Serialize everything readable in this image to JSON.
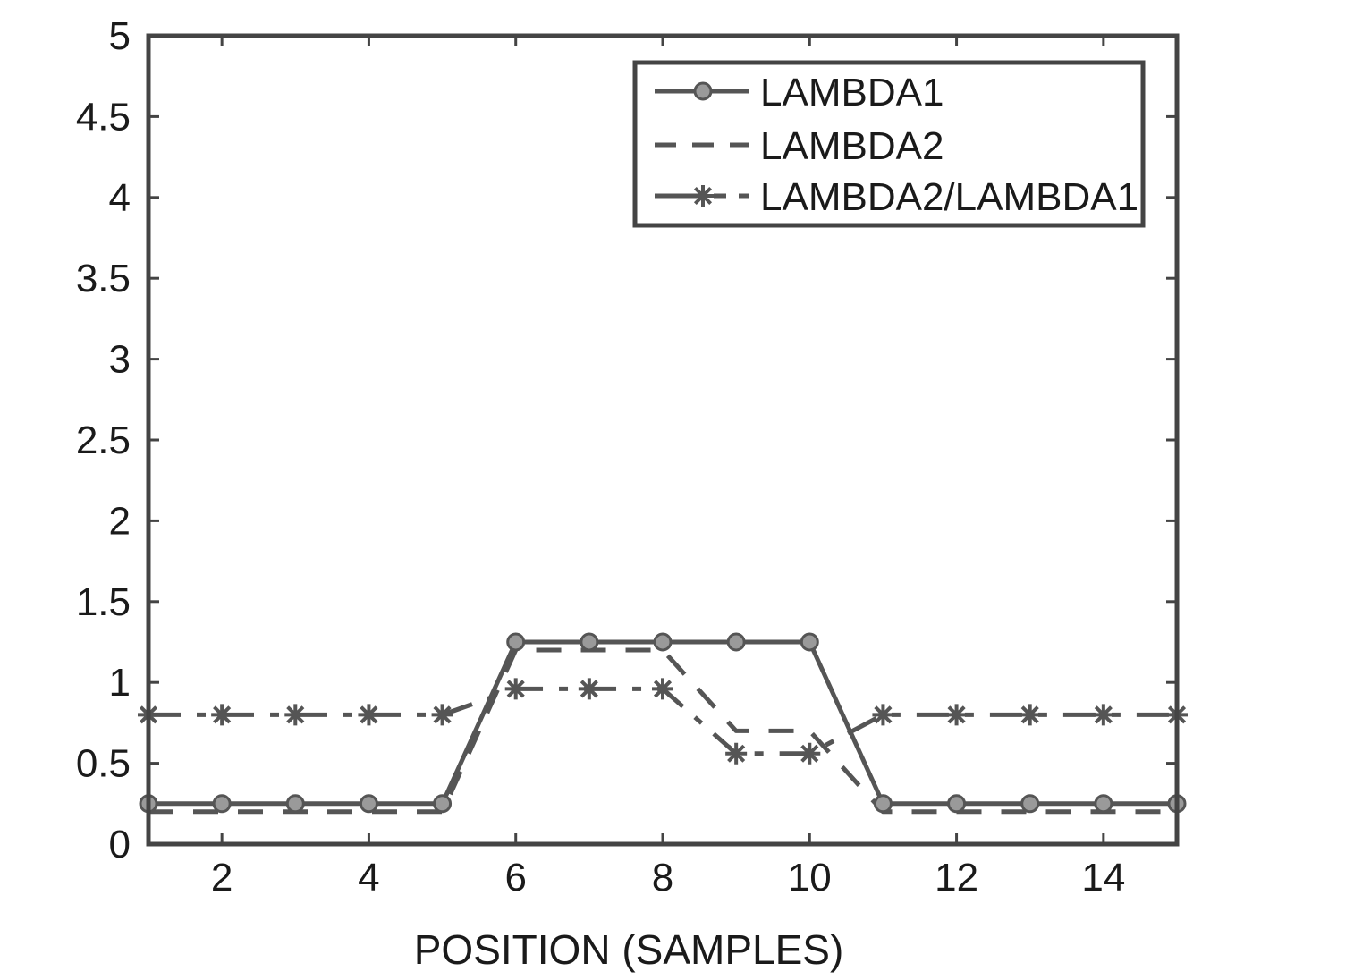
{
  "chart_data": {
    "type": "line",
    "title": "",
    "xlabel": "POSITION (SAMPLES)",
    "ylabel": "",
    "xlim": [
      1,
      15
    ],
    "ylim": [
      0,
      5
    ],
    "xticks": [
      2,
      4,
      6,
      8,
      10,
      12,
      14
    ],
    "xtick_labels": [
      "2",
      "4",
      "6",
      "8",
      "10",
      "12",
      "14"
    ],
    "yticks": [
      0,
      0.5,
      1,
      1.5,
      2,
      2.5,
      3,
      3.5,
      4,
      4.5,
      5
    ],
    "ytick_labels": [
      "0",
      "0.5",
      "1",
      "1.5",
      "2",
      "2.5",
      "3",
      "3.5",
      "4",
      "4.5",
      "5"
    ],
    "grid": false,
    "legend_position": "top-right",
    "x": [
      1,
      2,
      3,
      4,
      5,
      6,
      7,
      8,
      9,
      10,
      11,
      12,
      13,
      14,
      15
    ],
    "series": [
      {
        "name": "LAMBDA1",
        "line_style": "solid",
        "marker": "circle",
        "values": [
          0.25,
          0.25,
          0.25,
          0.25,
          0.25,
          1.25,
          1.25,
          1.25,
          1.25,
          1.25,
          0.25,
          0.25,
          0.25,
          0.25,
          0.25
        ]
      },
      {
        "name": "LAMBDA2",
        "line_style": "dashed",
        "marker": "none",
        "values": [
          0.2,
          0.2,
          0.2,
          0.2,
          0.2,
          1.2,
          1.2,
          1.2,
          0.7,
          0.7,
          0.2,
          0.2,
          0.2,
          0.2,
          0.2
        ]
      },
      {
        "name": "LAMBDA2/LAMBDA1",
        "line_style": "dash-dot",
        "marker": "star",
        "values": [
          0.8,
          0.8,
          0.8,
          0.8,
          0.8,
          0.96,
          0.96,
          0.96,
          0.56,
          0.56,
          0.8,
          0.8,
          0.8,
          0.8,
          0.8
        ]
      }
    ],
    "colors": {
      "line": "#555555",
      "axes": "#444444",
      "text": "#1a1a1a",
      "background": "#ffffff"
    }
  }
}
